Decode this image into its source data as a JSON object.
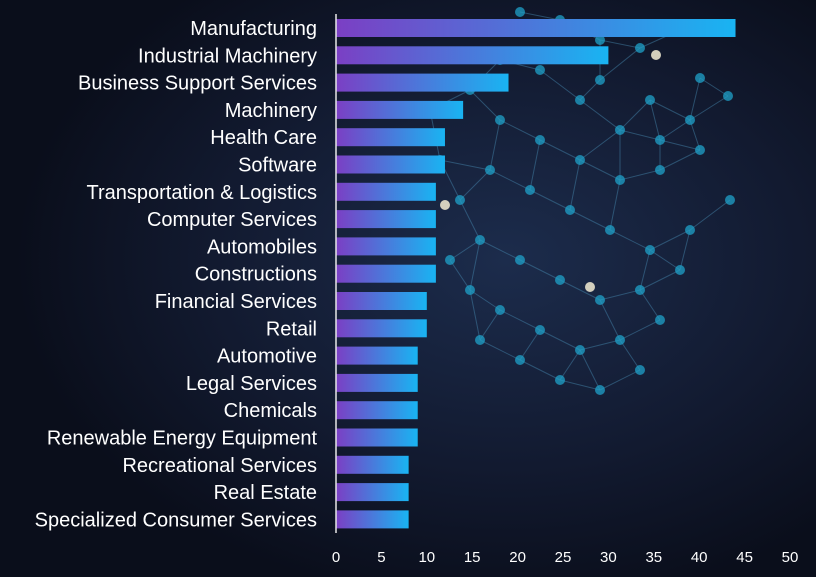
{
  "colors": {
    "background": "#0d1222",
    "bar_start": "#7b3fc4",
    "bar_end": "#19b4f2",
    "network_node": "#1fa2c9",
    "network_line": "#4a8fb5",
    "axis_line": "#e8e8e8",
    "text": "#ffffff"
  },
  "chart_data": {
    "type": "bar",
    "orientation": "horizontal",
    "title": "",
    "xlabel": "",
    "ylabel": "",
    "grid": false,
    "legend": "none",
    "xlim": [
      0,
      50
    ],
    "xticks": [
      "0",
      "5",
      "10",
      "15",
      "20",
      "25",
      "30",
      "35",
      "40",
      "45",
      "50"
    ],
    "categories": [
      "Manufacturing",
      "Industrial Machinery",
      "Business Support Services",
      "Machinery",
      "Health Care",
      "Software",
      "Transportation & Logistics",
      "Computer Services",
      "Automobiles",
      "Constructions",
      "Financial Services",
      "Retail",
      "Automotive",
      "Legal Services",
      "Chemicals",
      "Renewable Energy Equipment",
      "Recreational Services",
      "Real Estate",
      "Specialized Consumer Services"
    ],
    "values": [
      44,
      30,
      19,
      14,
      12,
      12,
      11,
      11,
      11,
      11,
      10,
      10,
      9,
      9,
      9,
      9,
      8,
      8,
      8
    ]
  }
}
